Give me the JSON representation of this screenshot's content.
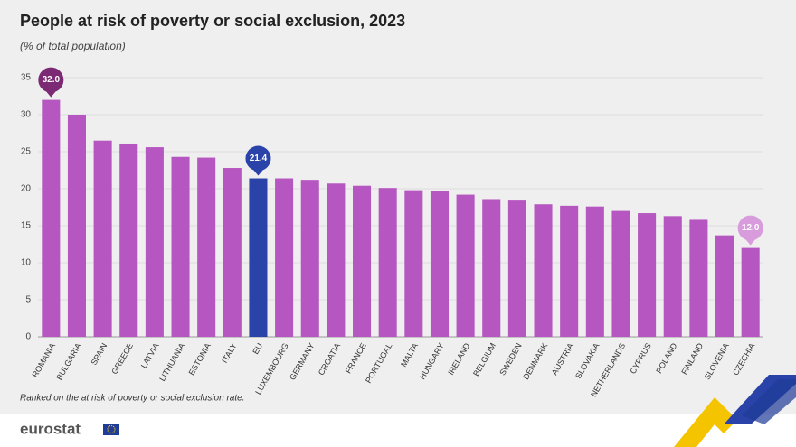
{
  "chart_data": {
    "type": "bar",
    "title": "People at risk of poverty or social exclusion, 2023",
    "subtitle": "(% of total population)",
    "categories": [
      "ROMANIA",
      "BULGARIA",
      "SPAIN",
      "GREECE",
      "LATVIA",
      "LITHUANIA",
      "ESTONIA",
      "ITALY",
      "EU",
      "LUXEMBOURG",
      "GERMANY",
      "CROATIA",
      "FRANCE",
      "PORTUGAL",
      "MALTA",
      "HUNGARY",
      "IRELAND",
      "BELGIUM",
      "SWEDEN",
      "DENMARK",
      "AUSTRIA",
      "SLOVAKIA",
      "NETHERLANDS",
      "CYPRUS",
      "POLAND",
      "FINLAND",
      "SLOVENIA",
      "CZECHIA"
    ],
    "values": [
      32.0,
      30.0,
      26.5,
      26.1,
      25.6,
      24.3,
      24.2,
      22.8,
      21.4,
      21.4,
      21.2,
      20.7,
      20.4,
      20.1,
      19.8,
      19.7,
      19.2,
      18.6,
      18.4,
      17.9,
      17.7,
      17.6,
      17.0,
      16.7,
      16.3,
      15.8,
      13.7,
      12.0
    ],
    "value_labels": [
      "32.0",
      null,
      null,
      null,
      null,
      null,
      null,
      null,
      "21.4",
      null,
      null,
      null,
      null,
      null,
      null,
      null,
      null,
      null,
      null,
      null,
      null,
      null,
      null,
      null,
      null,
      null,
      null,
      "12.0"
    ],
    "colors": [
      "#b656c0",
      "#b656c0",
      "#b656c0",
      "#b656c0",
      "#b656c0",
      "#b656c0",
      "#b656c0",
      "#b656c0",
      "#2a43a8",
      "#b656c0",
      "#b656c0",
      "#b656c0",
      "#b656c0",
      "#b656c0",
      "#b656c0",
      "#b656c0",
      "#b656c0",
      "#b656c0",
      "#b656c0",
      "#b656c0",
      "#b656c0",
      "#b656c0",
      "#b656c0",
      "#b656c0",
      "#b656c0",
      "#b656c0",
      "#b656c0",
      "#b656c0"
    ],
    "label_colors": [
      "#7b2a73",
      null,
      null,
      null,
      null,
      null,
      null,
      null,
      "#2a43a8",
      null,
      null,
      null,
      null,
      null,
      null,
      null,
      null,
      null,
      null,
      null,
      null,
      null,
      null,
      null,
      null,
      null,
      null,
      "#d89bdc"
    ],
    "ylim": [
      0,
      35
    ],
    "yticks": [
      0,
      5,
      10,
      15,
      20,
      25,
      30,
      35
    ],
    "grid": true,
    "note": "Ranked on the at risk of poverty or social exclusion rate.",
    "logo": "eurostat"
  }
}
